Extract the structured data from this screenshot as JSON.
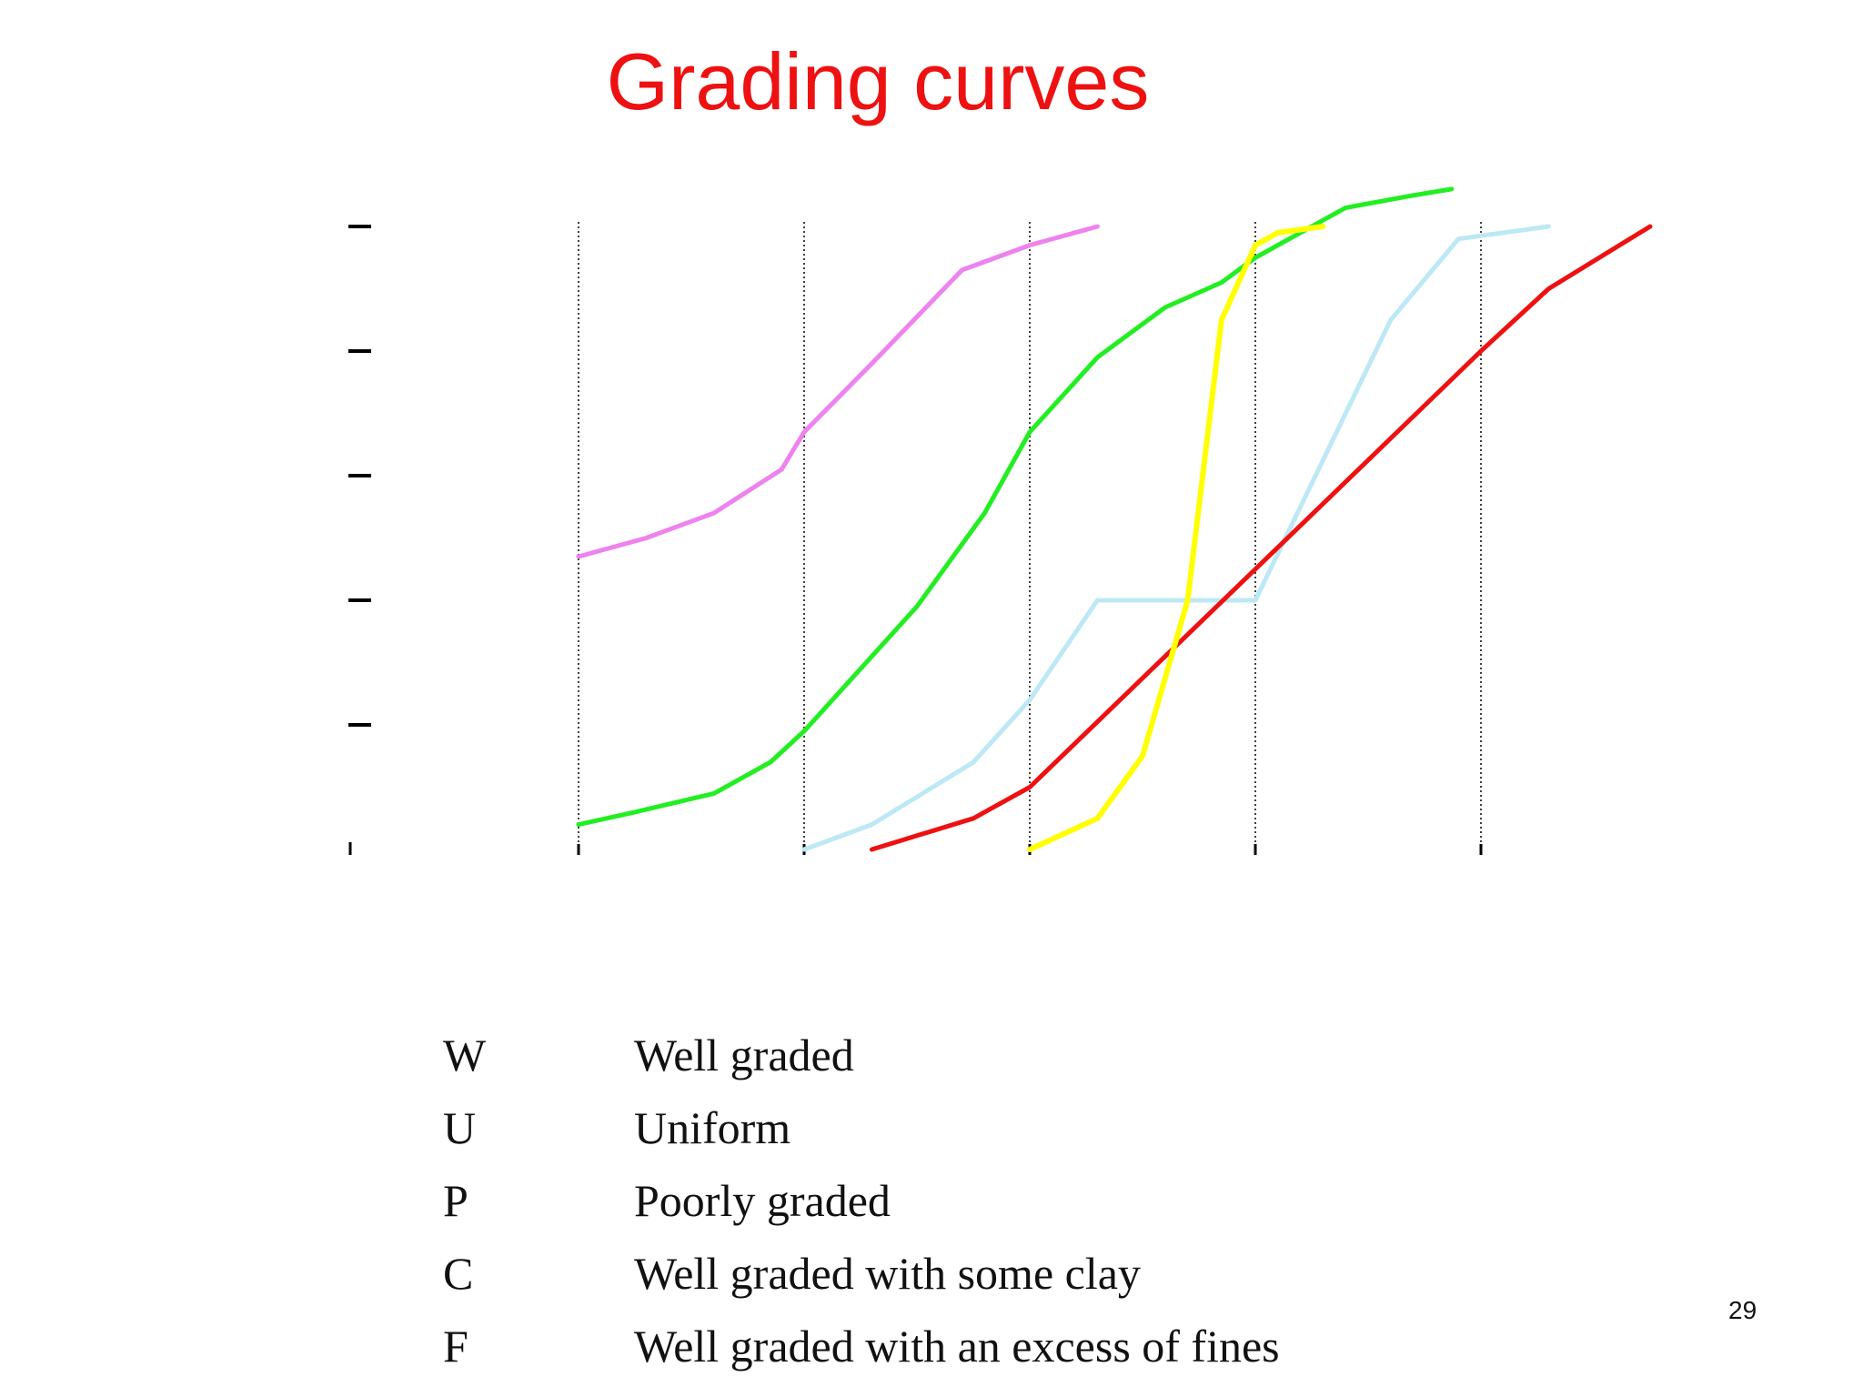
{
  "slide": {
    "title": "Grading curves",
    "title_color": "#ee1111",
    "page_number": "29"
  },
  "legend": [
    {
      "code": "W",
      "description": "Well graded"
    },
    {
      "code": "U",
      "description": "Uniform"
    },
    {
      "code": "P",
      "description": "Poorly graded"
    },
    {
      "code": "C",
      "description": "Well graded with some clay"
    },
    {
      "code": "F",
      "description": "Well graded with an excess of fines"
    }
  ],
  "chart_data": {
    "type": "line",
    "title": "",
    "xlabel": "",
    "ylabel": "",
    "xlim": [
      0,
      6
    ],
    "ylim": [
      0,
      100
    ],
    "x_tick_values": [
      0,
      1,
      2,
      3,
      4,
      5
    ],
    "y_tick_values": [
      0,
      20,
      40,
      60,
      80,
      100
    ],
    "x_gridlines_at": [
      1,
      2,
      3,
      4,
      5
    ],
    "grid": "vertical dotted",
    "tick_labels_visible": false,
    "series": [
      {
        "color": "#ee82ee",
        "x": [
          1.0,
          1.3,
          1.6,
          1.9,
          2.0,
          2.3,
          2.7,
          3.0,
          3.3
        ],
        "y": [
          47,
          50,
          54,
          61,
          67,
          78,
          93,
          97,
          100
        ]
      },
      {
        "color": "#22ee22",
        "x": [
          1.0,
          1.25,
          1.6,
          1.85,
          2.0,
          2.5,
          2.8,
          3.0,
          3.3,
          3.6,
          3.85,
          4.0,
          4.4,
          4.7,
          4.87
        ],
        "y": [
          4,
          6,
          9,
          14,
          19,
          39,
          54,
          67,
          79,
          87,
          91,
          95,
          103,
          105,
          106
        ]
      },
      {
        "color": "#bde8f5",
        "x": [
          2.0,
          2.3,
          2.75,
          3.0,
          3.3,
          4.0,
          4.6,
          4.9,
          5.3
        ],
        "y": [
          0,
          4,
          14,
          24,
          40,
          40,
          85,
          98,
          100
        ]
      },
      {
        "color": "#ee1111",
        "x": [
          2.3,
          2.75,
          3.0,
          4.0,
          5.0,
          5.3,
          5.75
        ],
        "y": [
          0,
          5,
          10,
          45,
          80,
          90,
          100
        ]
      },
      {
        "color": "#ffff00",
        "x": [
          3.0,
          3.3,
          3.5,
          3.7,
          3.8,
          3.85,
          4.0,
          4.1,
          4.3
        ],
        "y": [
          0,
          5,
          15,
          40,
          70,
          85,
          97,
          99,
          100
        ]
      }
    ]
  }
}
